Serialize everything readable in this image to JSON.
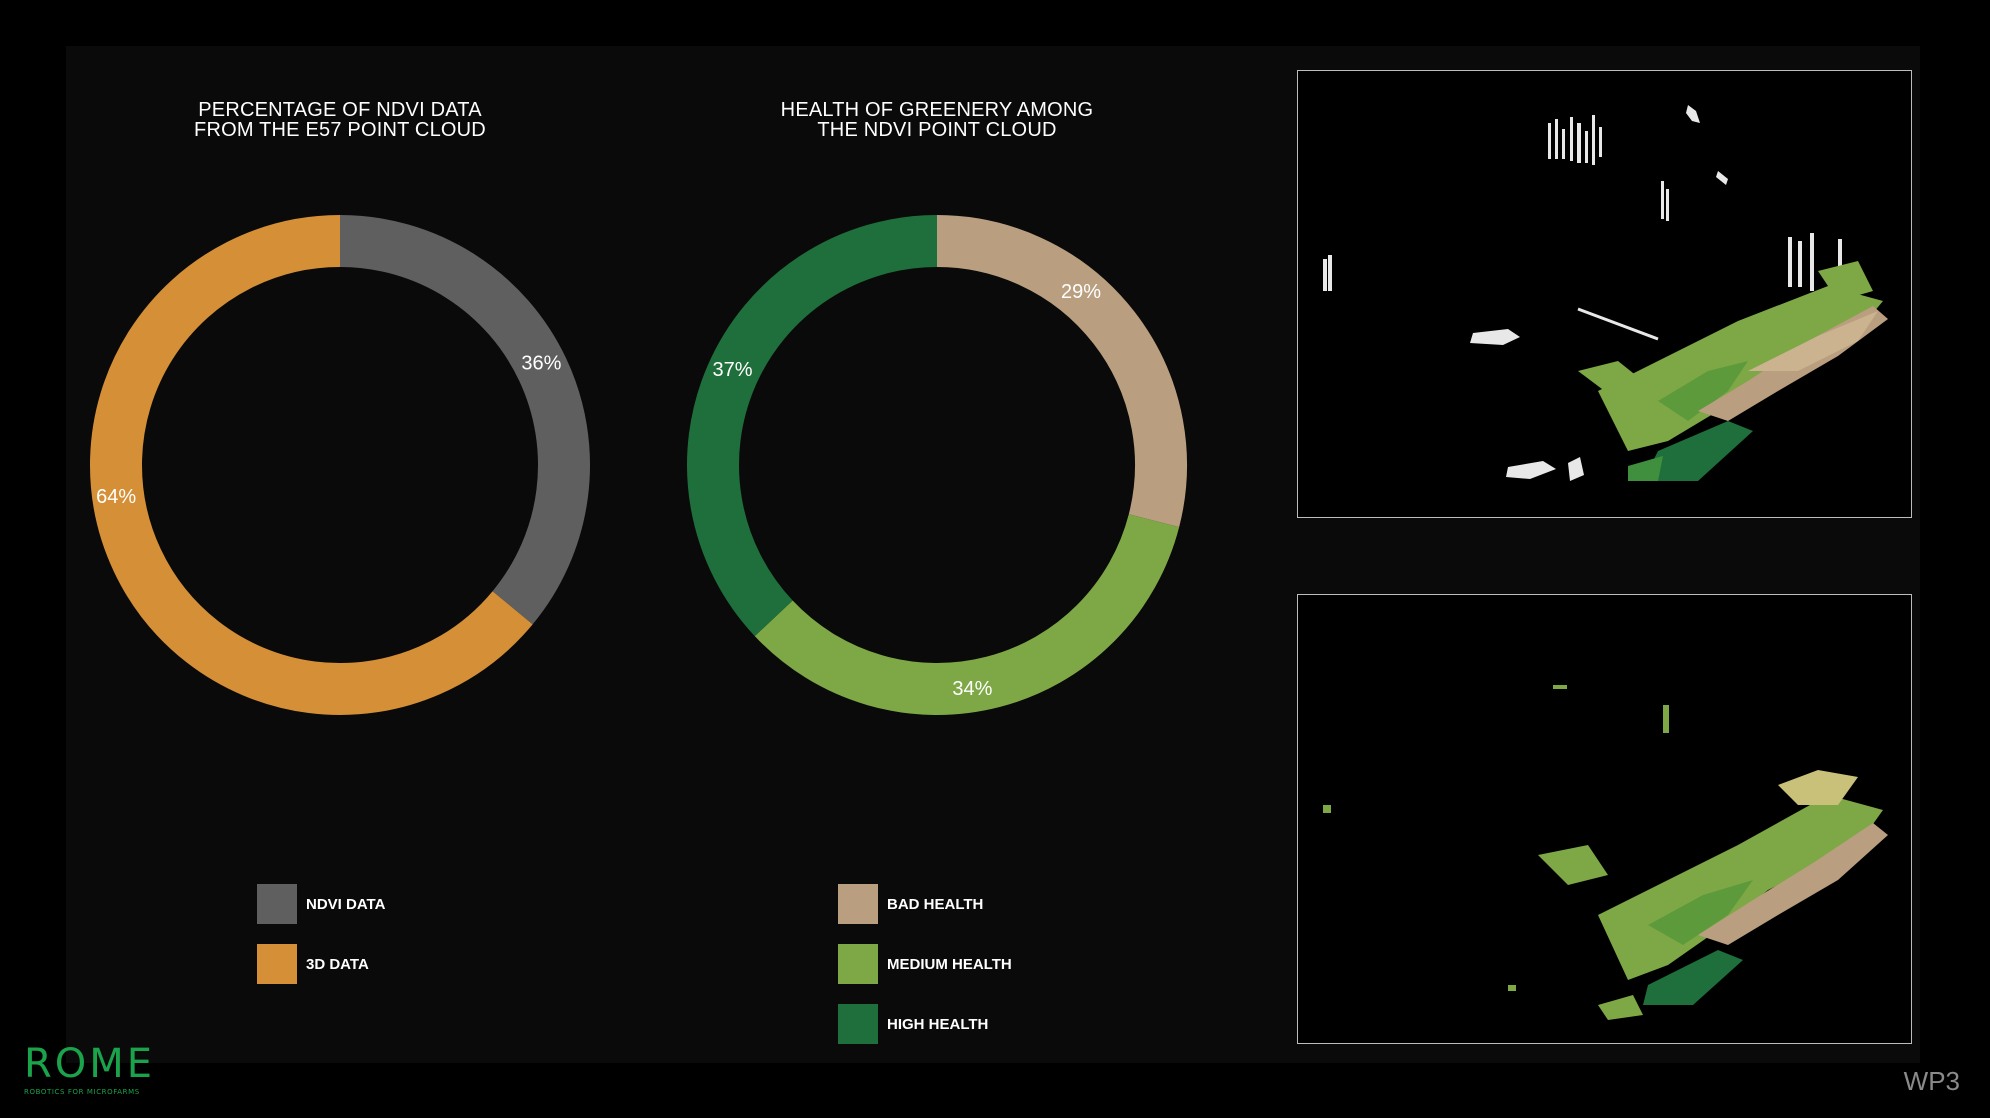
{
  "chart_data": [
    {
      "type": "pie",
      "title": "PERCENTAGE OF NDVI DATA\nFROM THE E57 POINT CLOUD",
      "series": [
        {
          "name": "NDVI DATA",
          "value": 36,
          "label": "36%",
          "color": "#5f5f5f"
        },
        {
          "name": "3D DATA",
          "value": 64,
          "label": "64%",
          "color": "#d48f37"
        }
      ],
      "legend_position": "bottom"
    },
    {
      "type": "pie",
      "title": "HEALTH OF GREENERY AMONG\nTHE NDVI POINT CLOUD",
      "series": [
        {
          "name": "BAD HEALTH",
          "value": 29,
          "label": "29%",
          "color": "#b99e7f"
        },
        {
          "name": "MEDIUM HEALTH",
          "value": 34,
          "label": "34%",
          "color": "#7ea846"
        },
        {
          "name": "HIGH HEALTH",
          "value": 37,
          "label": "37%",
          "color": "#1e6f3b"
        }
      ],
      "legend_position": "bottom"
    }
  ],
  "images": {
    "point_cloud_top": "point-cloud-rgb-and-ndvi-view",
    "point_cloud_bottom": "point-cloud-ndvi-view"
  },
  "branding": {
    "logo_text": "ROME",
    "logo_tagline": "ROBOTICS FOR MICROFARMS",
    "slide_tag": "WP3"
  }
}
